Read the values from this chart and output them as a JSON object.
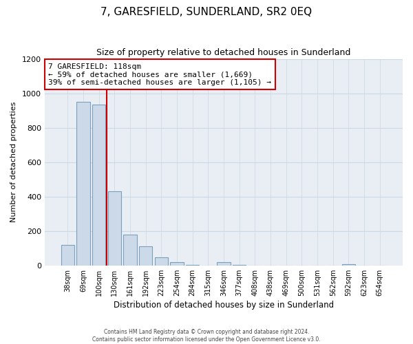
{
  "title": "7, GARESFIELD, SUNDERLAND, SR2 0EQ",
  "subtitle": "Size of property relative to detached houses in Sunderland",
  "xlabel": "Distribution of detached houses by size in Sunderland",
  "ylabel": "Number of detached properties",
  "bar_labels": [
    "38sqm",
    "69sqm",
    "100sqm",
    "130sqm",
    "161sqm",
    "192sqm",
    "223sqm",
    "254sqm",
    "284sqm",
    "315sqm",
    "346sqm",
    "377sqm",
    "408sqm",
    "438sqm",
    "469sqm",
    "500sqm",
    "531sqm",
    "562sqm",
    "592sqm",
    "623sqm",
    "654sqm"
  ],
  "bar_values": [
    120,
    950,
    935,
    430,
    180,
    112,
    47,
    20,
    5,
    0,
    18,
    5,
    0,
    0,
    0,
    0,
    0,
    0,
    8,
    0,
    0
  ],
  "bar_color": "#ccd9e8",
  "bar_edge_color": "#7aa0be",
  "vline_color": "#cc0000",
  "annotation_line1": "7 GARESFIELD: 118sqm",
  "annotation_line2": "← 59% of detached houses are smaller (1,669)",
  "annotation_line3": "39% of semi-detached houses are larger (1,105) →",
  "annotation_box_color": "#ffffff",
  "annotation_box_edge": "#cc0000",
  "ylim": [
    0,
    1200
  ],
  "yticks": [
    0,
    200,
    400,
    600,
    800,
    1000,
    1200
  ],
  "footer1": "Contains HM Land Registry data © Crown copyright and database right 2024.",
  "footer2": "Contains public sector information licensed under the Open Government Licence v3.0.",
  "grid_color": "#ccd8e4",
  "axes_bg_color": "#e8eef4",
  "figure_bg_color": "#ffffff"
}
